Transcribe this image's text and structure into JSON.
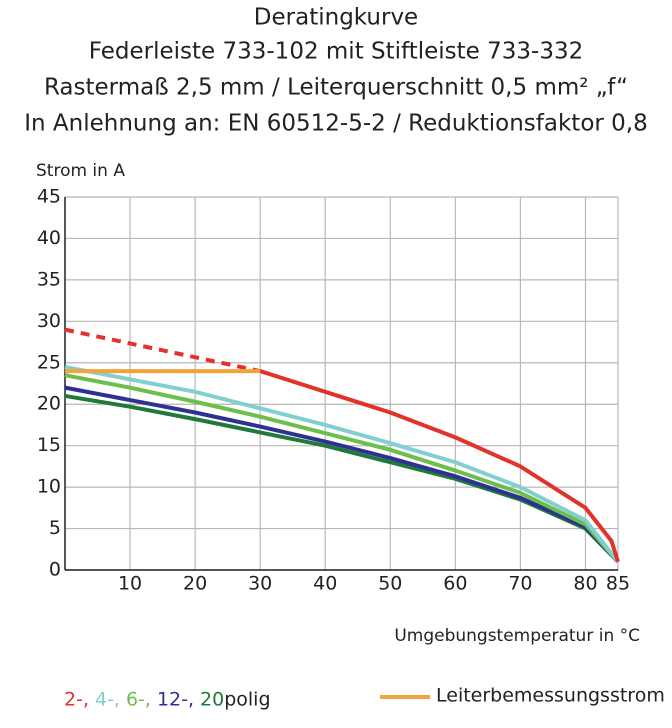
{
  "chart_data": {
    "type": "line",
    "title": "Deratingkurve",
    "subtitles": [
      "Federleiste 733-102 mit Stiftleiste 733-332",
      "Rastermaß 2,5 mm / Leiterquerschnitt 0,5 mm² „f“",
      "In Anlehnung an: EN 60512-5-2 / Reduktionsfaktor 0,8"
    ],
    "y_label": "Strom in A",
    "x_label": "Umgebungstemperatur in °C",
    "xlim": [
      0,
      85
    ],
    "xticks": [
      10,
      20,
      30,
      40,
      50,
      60,
      70,
      80,
      85
    ],
    "ylim": [
      0,
      45
    ],
    "yticks": [
      0,
      5,
      10,
      15,
      20,
      25,
      30,
      35,
      40,
      45
    ],
    "grid": true,
    "legend_suffix": "polig",
    "series": [
      {
        "name": "2-,",
        "color": "#e2332a",
        "dashed_until": 30,
        "x": [
          0,
          30,
          40,
          50,
          60,
          70,
          80,
          84,
          85
        ],
        "values": [
          29,
          24,
          21.5,
          19,
          16,
          12.5,
          7.5,
          3.5,
          1
        ]
      },
      {
        "name": "4-,",
        "color": "#82cfcf",
        "x": [
          0,
          10,
          20,
          30,
          40,
          50,
          60,
          70,
          80,
          85
        ],
        "values": [
          24.5,
          23,
          21.5,
          19.5,
          17.5,
          15.3,
          13,
          10,
          6,
          1
        ]
      },
      {
        "name": "6-,",
        "color": "#6cbf4a",
        "x": [
          0,
          10,
          20,
          30,
          40,
          50,
          60,
          70,
          80,
          85
        ],
        "values": [
          23.5,
          22,
          20.3,
          18.5,
          16.5,
          14.5,
          12,
          9.3,
          5.5,
          1
        ]
      },
      {
        "name": "12-,",
        "color": "#2e3192",
        "x": [
          0,
          10,
          20,
          30,
          40,
          50,
          60,
          70,
          80,
          85
        ],
        "values": [
          22,
          20.5,
          19,
          17.3,
          15.5,
          13.5,
          11.3,
          8.7,
          5.2,
          1
        ]
      },
      {
        "name": "20",
        "color": "#1f7a3a",
        "x": [
          0,
          10,
          20,
          30,
          40,
          50,
          60,
          70,
          80,
          85
        ],
        "values": [
          21,
          19.7,
          18.2,
          16.6,
          15,
          13,
          11,
          8.5,
          5,
          1
        ]
      }
    ],
    "rated_current": {
      "name": "Leiterbemessungsstrom",
      "color": "#f4a23a",
      "x": [
        0,
        30
      ],
      "values": [
        24,
        24
      ]
    }
  }
}
